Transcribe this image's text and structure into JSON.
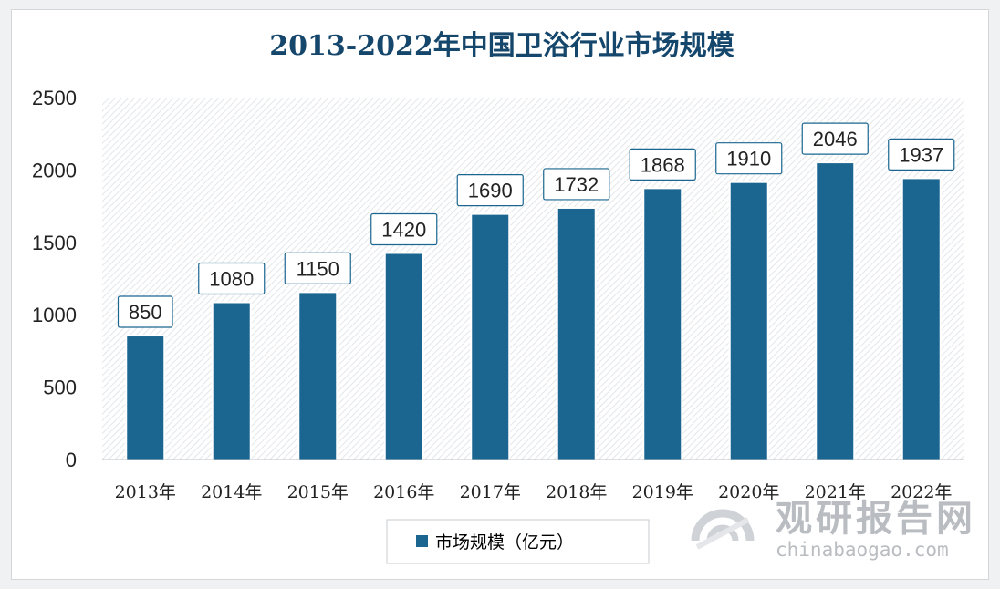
{
  "colors": {
    "bar": "#1a6690",
    "title": "#15466b",
    "text": "#222222",
    "label_border": "#1a6690",
    "watermark": "#b9bcc0"
  },
  "chart_data": {
    "type": "bar",
    "title": "2013-2022年中国卫浴行业市场规模",
    "categories": [
      "2013年",
      "2014年",
      "2015年",
      "2016年",
      "2017年",
      "2018年",
      "2019年",
      "2020年",
      "2021年",
      "2022年"
    ],
    "series": [
      {
        "name": "市场规模（亿元）",
        "values": [
          850,
          1080,
          1150,
          1420,
          1690,
          1732,
          1868,
          1910,
          2046,
          1937
        ]
      }
    ],
    "yticks": [
      0,
      500,
      1000,
      1500,
      2000,
      2500
    ],
    "ylim": [
      0,
      2500
    ],
    "xlabel": "",
    "ylabel": "",
    "grid": false,
    "legend_position": "bottom"
  },
  "watermark": {
    "brand": "观研报告网",
    "url": "chinabaogao.com"
  }
}
